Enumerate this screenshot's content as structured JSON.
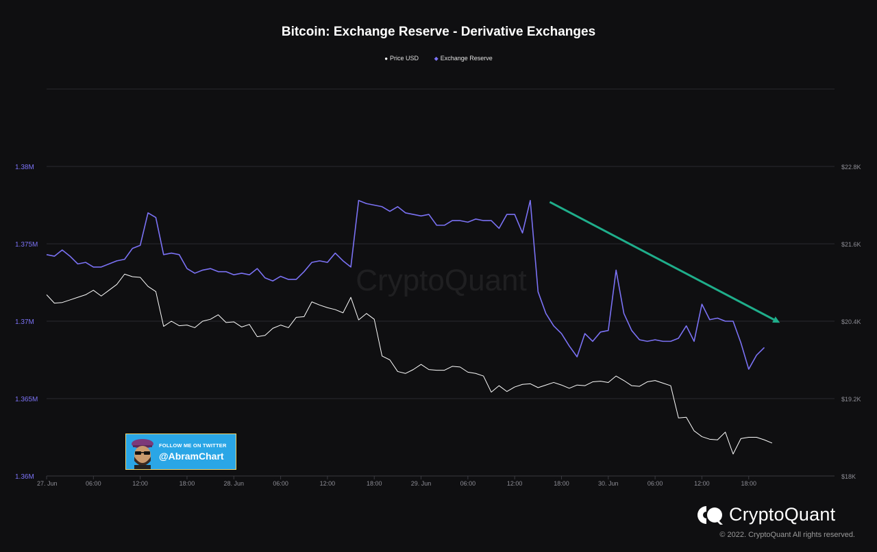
{
  "chart_data": {
    "type": "line",
    "title": "Bitcoin: Exchange Reserve - Derivative Exchanges",
    "legend_position": "top-center",
    "grid": true,
    "x_ticks": [
      "27. Jun",
      "06:00",
      "12:00",
      "18:00",
      "28. Jun",
      "06:00",
      "12:00",
      "18:00",
      "29. Jun",
      "06:00",
      "12:00",
      "18:00",
      "30. Jun",
      "06:00",
      "12:00",
      "18:00"
    ],
    "x_range_hours": [
      0,
      101
    ],
    "y_left": {
      "ticks": [
        "1.38M",
        "1.375M",
        "1.37M",
        "1.365M",
        "1.36M"
      ],
      "range": [
        1360000,
        1385000
      ],
      "color": "#7b72f5"
    },
    "y_right": {
      "ticks": [
        "$22.8K",
        "$21.6K",
        "$20.4K",
        "$19.2K",
        "$18K"
      ],
      "range": [
        18000,
        24000
      ]
    },
    "series": [
      {
        "name": "Price USD",
        "axis": "right",
        "color": "#ffffff",
        "values": [
          20810,
          20680,
          20690,
          20730,
          20770,
          20810,
          20880,
          20790,
          20880,
          20970,
          21130,
          21090,
          21080,
          20940,
          20860,
          20320,
          20400,
          20330,
          20340,
          20300,
          20400,
          20430,
          20500,
          20380,
          20390,
          20310,
          20350,
          20160,
          20180,
          20290,
          20340,
          20300,
          20460,
          20470,
          20700,
          20650,
          20610,
          20580,
          20530,
          20770,
          20420,
          20520,
          20430,
          19860,
          19800,
          19620,
          19590,
          19650,
          19730,
          19650,
          19640,
          19640,
          19700,
          19690,
          19610,
          19590,
          19550,
          19300,
          19400,
          19310,
          19380,
          19420,
          19430,
          19370,
          19410,
          19450,
          19410,
          19360,
          19410,
          19400,
          19460,
          19470,
          19450,
          19550,
          19480,
          19400,
          19390,
          19460,
          19480,
          19440,
          19400,
          18900,
          18910,
          18700,
          18610,
          18570,
          18560,
          18680,
          18340,
          18580,
          18600,
          18600,
          18560,
          18510
        ]
      },
      {
        "name": "Exchange Reserve",
        "axis": "left",
        "color": "#7b72f5",
        "values": [
          1374300,
          1374200,
          1374600,
          1374200,
          1373700,
          1373800,
          1373500,
          1373500,
          1373700,
          1373900,
          1374000,
          1374700,
          1374900,
          1377000,
          1376700,
          1374300,
          1374400,
          1374300,
          1373400,
          1373100,
          1373300,
          1373400,
          1373200,
          1373200,
          1373000,
          1373100,
          1373000,
          1373400,
          1372800,
          1372600,
          1372900,
          1372700,
          1372700,
          1373200,
          1373800,
          1373900,
          1373800,
          1374400,
          1373900,
          1373500,
          1377800,
          1377600,
          1377500,
          1377400,
          1377100,
          1377400,
          1377000,
          1376900,
          1376800,
          1376900,
          1376200,
          1376200,
          1376500,
          1376500,
          1376400,
          1376600,
          1376500,
          1376500,
          1376000,
          1376900,
          1376900,
          1375700,
          1377800,
          1371900,
          1370500,
          1369700,
          1369200,
          1368400,
          1367700,
          1369200,
          1368700,
          1369300,
          1369400,
          1373300,
          1370500,
          1369400,
          1368800,
          1368700,
          1368800,
          1368700,
          1368700,
          1368900,
          1369700,
          1368700,
          1371100,
          1370100,
          1370200,
          1370000,
          1370000,
          1368600,
          1366900,
          1367800,
          1368300
        ]
      }
    ],
    "annotations": [
      {
        "type": "trend-arrow",
        "color": "#1fae8b",
        "from": {
          "x_hours": 64.5,
          "y": 1377700
        },
        "to": {
          "x_hours": 94,
          "y": 1369900
        }
      }
    ],
    "watermark": "CryptoQuant"
  },
  "badge": {
    "line1": "FOLLOW ME ON TWITTER",
    "line2": "@AbramChart"
  },
  "brand": {
    "name": "CryptoQuant",
    "copyright": "© 2022. CryptoQuant All rights reserved."
  },
  "colors": {
    "background": "#0f0f11",
    "grid": "#2a2a2e",
    "axis_text": "#8e8e96"
  }
}
